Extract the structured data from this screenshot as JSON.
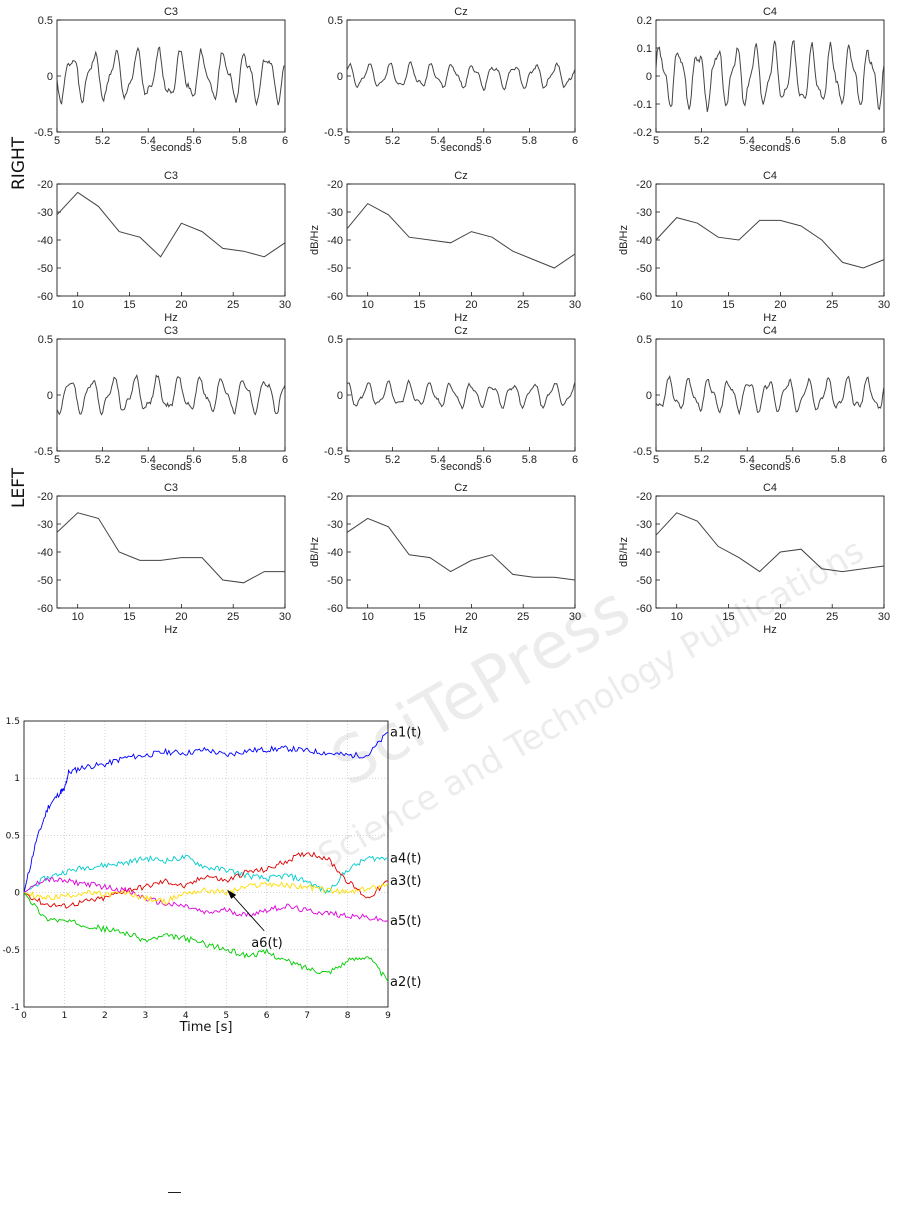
{
  "row_labels": {
    "right": "RIGHT",
    "left": "LEFT"
  },
  "stray_mark": "―",
  "watermark": {
    "main": "SciTePress",
    "sub": "Science and Technology Publications"
  },
  "chart_data": [
    {
      "type": "line",
      "group": "RIGHT",
      "title": "C3",
      "xlabel": "seconds",
      "ylabel": "",
      "xlim": [
        5,
        6
      ],
      "ylim": [
        -0.5,
        0.5
      ],
      "xticks": [
        "5",
        "5.2",
        "5.4",
        "5.6",
        "5.8",
        "6"
      ],
      "yticks": [
        "-0.5",
        "0",
        "0.5"
      ],
      "wave": {
        "amp": 0.18,
        "freq": 10.5,
        "phase": 0.4,
        "seed": 1
      }
    },
    {
      "type": "line",
      "group": "RIGHT",
      "title": "Cz",
      "xlabel": "seconds",
      "ylabel": "",
      "xlim": [
        5,
        6
      ],
      "ylim": [
        -0.5,
        0.5
      ],
      "xticks": [
        "5",
        "5.2",
        "5.4",
        "5.6",
        "5.8",
        "6"
      ],
      "yticks": [
        "-0.5",
        "0",
        "0.5"
      ],
      "wave": {
        "amp": 0.09,
        "freq": 11,
        "phase": 1.1,
        "seed": 2
      }
    },
    {
      "type": "line",
      "group": "RIGHT",
      "title": "C4",
      "xlabel": "seconds",
      "ylabel": "",
      "xlim": [
        5,
        6
      ],
      "ylim": [
        -0.2,
        0.2
      ],
      "xticks": [
        "5",
        "5.2",
        "5.4",
        "5.6",
        "5.8",
        "6"
      ],
      "yticks": [
        "-0.2",
        "-0.1",
        "0",
        "0.1",
        "0.2"
      ],
      "wave": {
        "amp": 0.09,
        "freq": 12,
        "phase": 0.2,
        "seed": 3
      }
    },
    {
      "type": "line",
      "group": "RIGHT",
      "title": "C3",
      "xlabel": "Hz",
      "ylabel": "",
      "xlim": [
        8,
        30
      ],
      "ylim": [
        -60,
        -20
      ],
      "xticks": [
        "10",
        "15",
        "20",
        "25",
        "30"
      ],
      "yticks": [
        "-60",
        "-50",
        "-40",
        "-30",
        "-20"
      ],
      "x": [
        8,
        10,
        12,
        14,
        16,
        18,
        20,
        22,
        24,
        26,
        28,
        30
      ],
      "y": [
        -31,
        -23,
        -28,
        -37,
        -39,
        -46,
        -34,
        -37,
        -43,
        -44,
        -46,
        -41
      ]
    },
    {
      "type": "line",
      "group": "RIGHT",
      "title": "Cz",
      "xlabel": "Hz",
      "ylabel": "dB/Hz",
      "xlim": [
        8,
        30
      ],
      "ylim": [
        -60,
        -20
      ],
      "xticks": [
        "10",
        "15",
        "20",
        "25",
        "30"
      ],
      "yticks": [
        "-60",
        "-50",
        "-40",
        "-30",
        "-20"
      ],
      "x": [
        8,
        10,
        12,
        14,
        16,
        18,
        20,
        22,
        24,
        26,
        28,
        30
      ],
      "y": [
        -36,
        -27,
        -31,
        -39,
        -40,
        -41,
        -37,
        -39,
        -44,
        -47,
        -50,
        -45
      ]
    },
    {
      "type": "line",
      "group": "RIGHT",
      "title": "C4",
      "xlabel": "Hz",
      "ylabel": "dB/Hz",
      "xlim": [
        8,
        30
      ],
      "ylim": [
        -60,
        -20
      ],
      "xticks": [
        "10",
        "15",
        "20",
        "25",
        "30"
      ],
      "yticks": [
        "-60",
        "-50",
        "-40",
        "-30",
        "-20"
      ],
      "x": [
        8,
        10,
        12,
        14,
        16,
        18,
        20,
        22,
        24,
        26,
        28,
        30
      ],
      "y": [
        -40,
        -32,
        -34,
        -39,
        -40,
        -33,
        -33,
        -35,
        -40,
        -48,
        -50,
        -47
      ]
    },
    {
      "type": "line",
      "group": "LEFT",
      "title": "C3",
      "xlabel": "seconds",
      "ylabel": "",
      "xlim": [
        5,
        6
      ],
      "ylim": [
        -0.5,
        0.5
      ],
      "xticks": [
        "5",
        "5.2",
        "5.4",
        "5.6",
        "5.8",
        "6"
      ],
      "yticks": [
        "-0.5",
        "0",
        "0.5"
      ],
      "wave": {
        "amp": 0.13,
        "freq": 10.5,
        "phase": 0.9,
        "seed": 4
      }
    },
    {
      "type": "line",
      "group": "LEFT",
      "title": "Cz",
      "xlabel": "seconds",
      "ylabel": "",
      "xlim": [
        5,
        6
      ],
      "ylim": [
        -0.5,
        0.5
      ],
      "xticks": [
        "5",
        "5.2",
        "5.4",
        "5.6",
        "5.8",
        "6"
      ],
      "yticks": [
        "-0.5",
        "0",
        "0.5"
      ],
      "wave": {
        "amp": 0.09,
        "freq": 11,
        "phase": 1.6,
        "seed": 5
      }
    },
    {
      "type": "line",
      "group": "LEFT",
      "title": "C4",
      "xlabel": "seconds",
      "ylabel": "",
      "xlim": [
        5,
        6
      ],
      "ylim": [
        -0.5,
        0.5
      ],
      "xticks": [
        "5",
        "5.2",
        "5.4",
        "5.6",
        "5.8",
        "6"
      ],
      "yticks": [
        "-0.5",
        "0",
        "0.5"
      ],
      "wave": {
        "amp": 0.12,
        "freq": 11.5,
        "phase": 0.5,
        "seed": 6
      }
    },
    {
      "type": "line",
      "group": "LEFT",
      "title": "C3",
      "xlabel": "Hz",
      "ylabel": "",
      "xlim": [
        8,
        30
      ],
      "ylim": [
        -60,
        -20
      ],
      "xticks": [
        "10",
        "15",
        "20",
        "25",
        "30"
      ],
      "yticks": [
        "-60",
        "-50",
        "-40",
        "-30",
        "-20"
      ],
      "x": [
        8,
        10,
        12,
        14,
        16,
        18,
        20,
        22,
        24,
        26,
        28,
        30
      ],
      "y": [
        -33,
        -26,
        -28,
        -40,
        -43,
        -43,
        -42,
        -42,
        -50,
        -51,
        -47,
        -47
      ]
    },
    {
      "type": "line",
      "group": "LEFT",
      "title": "Cz",
      "xlabel": "Hz",
      "ylabel": "dB/Hz",
      "xlim": [
        8,
        30
      ],
      "ylim": [
        -60,
        -20
      ],
      "xticks": [
        "10",
        "15",
        "20",
        "25",
        "30"
      ],
      "yticks": [
        "-60",
        "-50",
        "-40",
        "-30",
        "-20"
      ],
      "x": [
        8,
        10,
        12,
        14,
        16,
        18,
        20,
        22,
        24,
        26,
        28,
        30
      ],
      "y": [
        -33,
        -28,
        -31,
        -41,
        -42,
        -47,
        -43,
        -41,
        -48,
        -49,
        -49,
        -50
      ]
    },
    {
      "type": "line",
      "group": "LEFT",
      "title": "C4",
      "xlabel": "Hz",
      "ylabel": "dB/Hz",
      "xlim": [
        8,
        30
      ],
      "ylim": [
        -60,
        -20
      ],
      "xticks": [
        "10",
        "15",
        "20",
        "25",
        "30"
      ],
      "yticks": [
        "-60",
        "-50",
        "-40",
        "-30",
        "-20"
      ],
      "x": [
        8,
        10,
        12,
        14,
        16,
        18,
        20,
        22,
        24,
        26,
        28,
        30
      ],
      "y": [
        -34,
        -26,
        -29,
        -38,
        -42,
        -47,
        -40,
        -39,
        -46,
        -47,
        -46,
        -45
      ]
    },
    {
      "type": "line",
      "title": "",
      "xlabel": "Time [s]",
      "ylabel": "",
      "xlim": [
        0,
        9
      ],
      "ylim": [
        -1,
        1.5
      ],
      "xticks": [
        "0",
        "1",
        "2",
        "3",
        "4",
        "5",
        "6",
        "7",
        "8",
        "9"
      ],
      "yticks": [
        "-1",
        "-0.5",
        "0",
        "0.5",
        "1",
        "1.5"
      ],
      "grid": true,
      "annotation": {
        "text": "a6(t)",
        "x": 5.0,
        "y": 0.05
      },
      "series": [
        {
          "name": "a1(t)",
          "color": "#0000ff",
          "x": [
            0,
            0.3,
            0.6,
            0.9,
            1.0,
            1.1,
            1.5,
            2,
            2.5,
            3,
            3.5,
            4,
            4.5,
            5,
            5.5,
            6,
            6.5,
            7,
            7.5,
            8,
            8.5,
            9
          ],
          "y": [
            0,
            0.45,
            0.75,
            0.88,
            0.9,
            1.05,
            1.1,
            1.12,
            1.18,
            1.2,
            1.23,
            1.22,
            1.25,
            1.2,
            1.24,
            1.25,
            1.26,
            1.24,
            1.22,
            1.2,
            1.2,
            1.4
          ]
        },
        {
          "name": "a4(t)",
          "color": "#00cccc",
          "x": [
            0,
            0.5,
            1,
            1.5,
            2,
            2.5,
            3,
            3.5,
            4,
            4.5,
            5,
            5.5,
            6,
            6.5,
            7,
            7.5,
            8,
            8.5,
            9
          ],
          "y": [
            0,
            0.12,
            0.18,
            0.22,
            0.24,
            0.26,
            0.3,
            0.28,
            0.31,
            0.22,
            0.2,
            0.15,
            0.12,
            0.15,
            0.1,
            0.0,
            0.2,
            0.3,
            0.3
          ]
        },
        {
          "name": "a3(t)",
          "color": "#e00000",
          "x": [
            0,
            0.5,
            1,
            1.5,
            2,
            2.5,
            3,
            3.5,
            4,
            4.5,
            5,
            5.5,
            6,
            6.5,
            7,
            7.5,
            8,
            8.5,
            9
          ],
          "y": [
            0,
            -0.1,
            -0.12,
            -0.08,
            -0.05,
            0.02,
            0.05,
            0.1,
            0.05,
            0.15,
            0.1,
            0.18,
            0.2,
            0.28,
            0.35,
            0.3,
            0.1,
            -0.05,
            0.1
          ]
        },
        {
          "name": "a5(t)",
          "color": "#dd00dd",
          "x": [
            0,
            0.5,
            1,
            1.5,
            2,
            2.5,
            3,
            3.5,
            4,
            4.5,
            5,
            5.5,
            6,
            6.5,
            7,
            7.5,
            8,
            8.5,
            9
          ],
          "y": [
            0,
            0.12,
            0.1,
            0.08,
            0.05,
            0.02,
            -0.05,
            -0.1,
            -0.12,
            -0.18,
            -0.15,
            -0.2,
            -0.15,
            -0.12,
            -0.16,
            -0.18,
            -0.2,
            -0.22,
            -0.25
          ]
        },
        {
          "name": "a6(t)",
          "color": "#ffdd00",
          "x": [
            0,
            0.5,
            1,
            1.5,
            2,
            2.5,
            3,
            3.5,
            4,
            4.5,
            5,
            5.5,
            6,
            6.5,
            7,
            7.5,
            8,
            8.5,
            9
          ],
          "y": [
            0,
            -0.05,
            -0.03,
            0.0,
            -0.02,
            0.0,
            -0.05,
            -0.08,
            0.0,
            0.02,
            0.0,
            0.05,
            0.08,
            0.06,
            0.05,
            0.02,
            0.0,
            0.03,
            0.08
          ]
        },
        {
          "name": "a2(t)",
          "color": "#00cc00",
          "x": [
            0,
            0.5,
            1,
            1.5,
            2,
            2.5,
            3,
            3.5,
            4,
            4.5,
            5,
            5.5,
            6,
            6.5,
            7,
            7.5,
            8,
            8.5,
            9
          ],
          "y": [
            0,
            -0.22,
            -0.25,
            -0.28,
            -0.32,
            -0.35,
            -0.42,
            -0.38,
            -0.4,
            -0.45,
            -0.5,
            -0.55,
            -0.52,
            -0.6,
            -0.66,
            -0.7,
            -0.6,
            -0.55,
            -0.78
          ]
        }
      ]
    }
  ]
}
